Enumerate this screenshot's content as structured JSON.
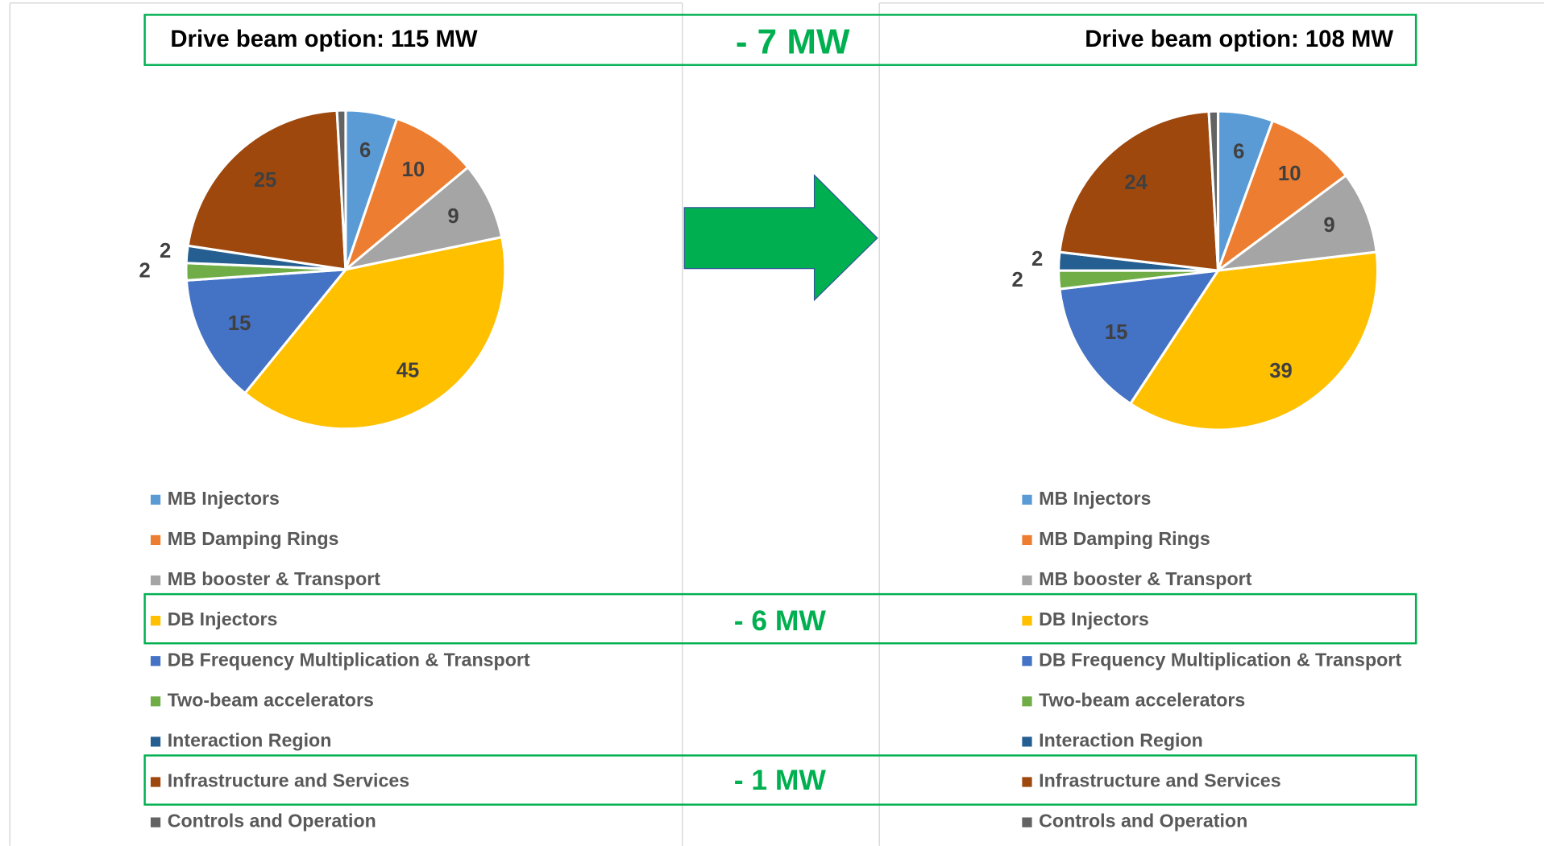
{
  "chart_data": [
    {
      "type": "pie",
      "title": "Drive beam option: 115 MW",
      "categories": [
        "MB Injectors",
        "MB Damping Rings",
        "MB booster & Transport",
        "DB Injectors",
        "DB Frequency Multiplication & Transport",
        "Two-beam accelerators",
        "Interaction Region",
        "Infrastructure and Services",
        "Controls and Operation"
      ],
      "values": [
        6,
        10,
        9,
        45,
        15,
        2,
        2,
        25,
        1
      ],
      "colors": [
        "#5b9bd5",
        "#ed7d31",
        "#a5a5a5",
        "#ffc000",
        "#4472c4",
        "#70ad47",
        "#255e91",
        "#9e480e",
        "#636363"
      ]
    },
    {
      "type": "pie",
      "title": "Drive beam option: 108 MW",
      "categories": [
        "MB Injectors",
        "MB Damping Rings",
        "MB booster & Transport",
        "DB Injectors",
        "DB Frequency Multiplication & Transport",
        "Two-beam accelerators",
        "Interaction Region",
        "Infrastructure and Services",
        "Controls and Operation"
      ],
      "values": [
        6,
        10,
        9,
        39,
        15,
        2,
        2,
        24,
        1
      ],
      "colors": [
        "#5b9bd5",
        "#ed7d31",
        "#a5a5a5",
        "#ffc000",
        "#4472c4",
        "#70ad47",
        "#255e91",
        "#9e480e",
        "#636363"
      ]
    }
  ],
  "annotations": [
    "- 7 MW",
    "- 6 MW",
    "- 1 MW"
  ]
}
